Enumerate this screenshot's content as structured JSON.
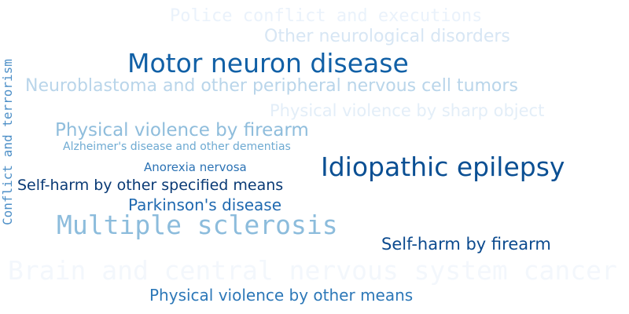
{
  "word_cloud": {
    "words": [
      {
        "text": "Police conflict and executions",
        "color": "#eaf2fb"
      },
      {
        "text": "Other neurological disorders",
        "color": "#d7e6f4"
      },
      {
        "text": "Motor neuron disease",
        "color": "#1160a6"
      },
      {
        "text": "Neuroblastoma and other peripheral nervous cell tumors",
        "color": "#b9d5ea"
      },
      {
        "text": "Physical violence by sharp object",
        "color": "#e3eef8"
      },
      {
        "text": "Physical violence by firearm",
        "color": "#8fbddc"
      },
      {
        "text": "Alzheimer's disease and other dementias",
        "color": "#6eaad2"
      },
      {
        "text": "Anorexia nervosa",
        "color": "#2b72b4"
      },
      {
        "text": "Idiopathic epilepsy",
        "color": "#0a4f93"
      },
      {
        "text": "Self-harm by other specified means",
        "color": "#0a3a75"
      },
      {
        "text": "Parkinson's disease",
        "color": "#1f69b0"
      },
      {
        "text": "Multiple sclerosis",
        "color": "#8cbcdc"
      },
      {
        "text": "Self-harm by firearm",
        "color": "#0b4a8e"
      },
      {
        "text": "Brain and central nervous system cancer",
        "color": "#f3f7fc"
      },
      {
        "text": "Physical violence by other means",
        "color": "#2d78b8"
      },
      {
        "text": "Conflict and terrorism",
        "color": "#4d8fc7"
      }
    ]
  }
}
